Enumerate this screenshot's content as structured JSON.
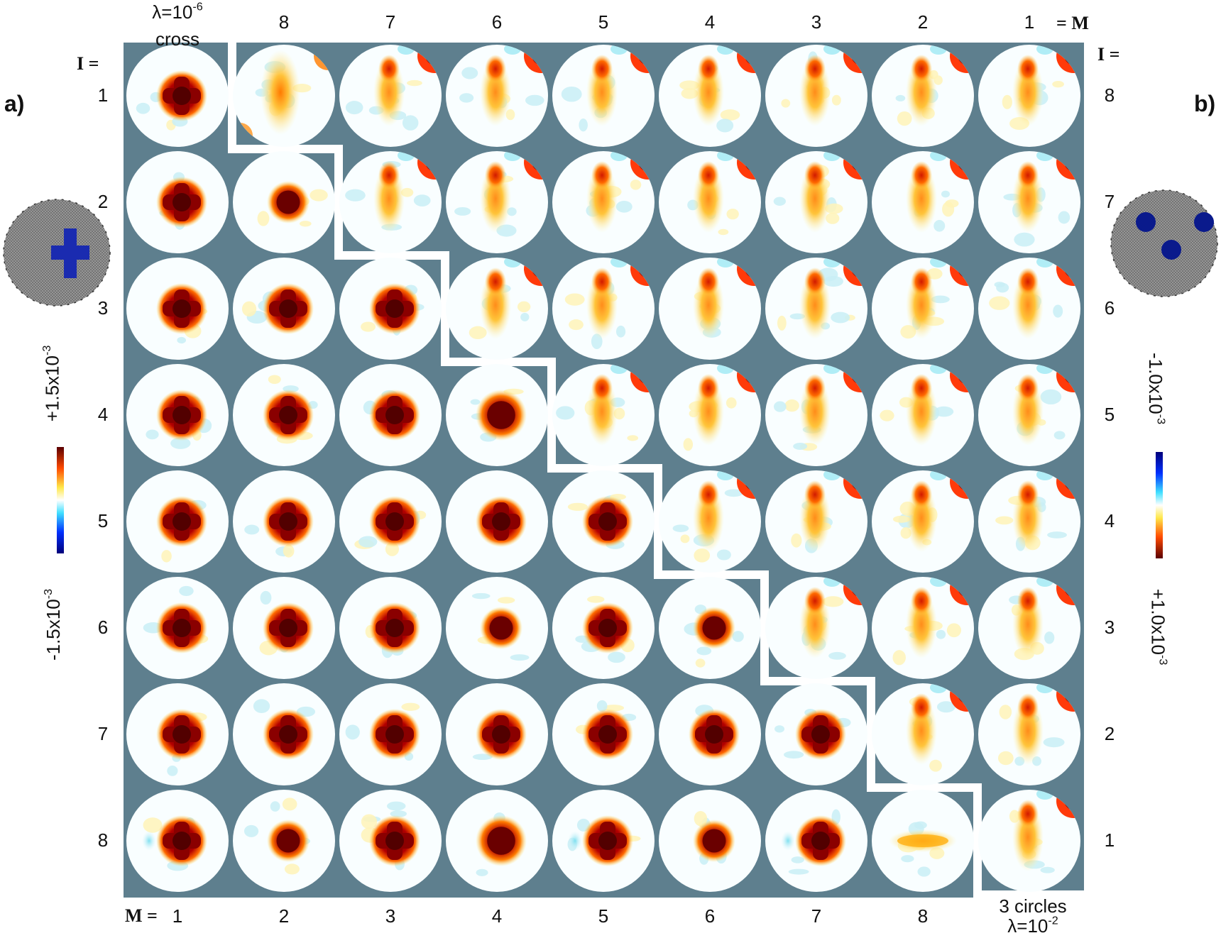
{
  "panel_a": {
    "label": "a)",
    "lambda_base": "λ=10",
    "lambda_exp": "-6",
    "target": "cross",
    "colorbar_max_base": "+1.5x10",
    "colorbar_max_exp": "-3",
    "colorbar_min_base": "-1.5x10",
    "colorbar_min_exp": "-3"
  },
  "panel_b": {
    "label": "b)",
    "target": "3 circles",
    "lambda_base": "λ=10",
    "lambda_exp": "-2",
    "colorbar_top_base": "-1.0x10",
    "colorbar_top_exp": "-3",
    "colorbar_bottom_base": "+1.0x10",
    "colorbar_bottom_exp": "-3"
  },
  "axes": {
    "I_label_left": "I =",
    "I_label_right": "I =",
    "M_label_top": "= M",
    "M_label_bottom": "M =",
    "top_M_values": [
      "8",
      "7",
      "6",
      "5",
      "4",
      "3",
      "2",
      "1"
    ],
    "left_I_values": [
      "1",
      "2",
      "3",
      "4",
      "5",
      "6",
      "7",
      "8"
    ],
    "right_I_values": [
      "8",
      "7",
      "6",
      "5",
      "4",
      "3",
      "2",
      "1"
    ],
    "bottom_M_values": [
      "1",
      "2",
      "3",
      "4",
      "5",
      "6",
      "7",
      "8"
    ]
  },
  "colors": {
    "background_panel": "#5e7f8e",
    "separator": "#ffffff",
    "cross_blob": "#7a0000",
    "target_blue": "#0a1a8c"
  }
}
